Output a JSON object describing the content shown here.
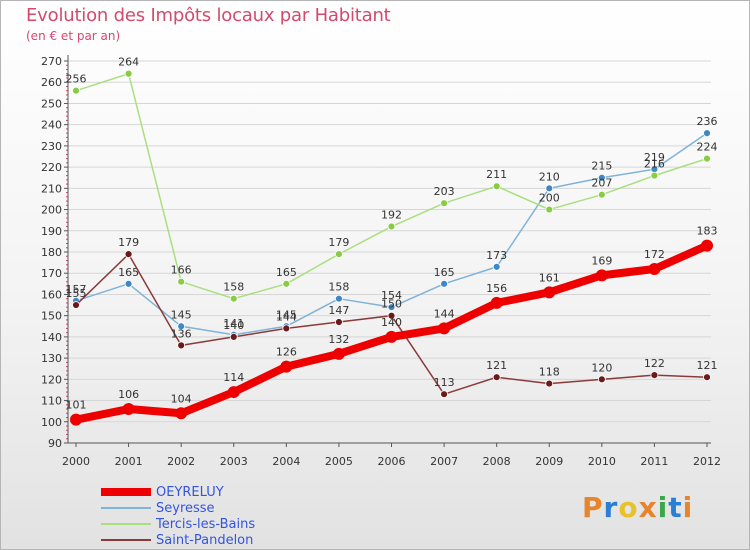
{
  "header": {
    "title": "Evolution des Impôts locaux par Habitant",
    "subtitle": "(en € et par an)"
  },
  "logo": {
    "text": "Proxiti",
    "colors": [
      "#e8842c",
      "#2a7fd4",
      "#e8c22a",
      "#e8842c",
      "#3aa84a",
      "#2a7fd4",
      "#e8842c"
    ]
  },
  "chart_data": {
    "type": "line",
    "x": [
      "2000",
      "2001",
      "2002",
      "2003",
      "2004",
      "2005",
      "2006",
      "2007",
      "2008",
      "2009",
      "2010",
      "2011",
      "2012"
    ],
    "yticks": [
      90,
      100,
      110,
      120,
      130,
      140,
      150,
      160,
      170,
      180,
      190,
      200,
      210,
      220,
      230,
      240,
      250,
      260,
      270
    ],
    "ylim": [
      90,
      270
    ],
    "grid": "horizontal",
    "legend_position": "bottom-left",
    "series": [
      {
        "name": "OEYRELUY",
        "color": "#ee0000",
        "marker_color": "#ee0000",
        "values": [
          101,
          106,
          104,
          114,
          126,
          132,
          140,
          144,
          156,
          161,
          169,
          172,
          183
        ],
        "labels": [
          "101",
          "106",
          "104",
          "114",
          "126",
          "132",
          "140",
          "144",
          "156",
          "161",
          "169",
          "172",
          "183"
        ]
      },
      {
        "name": "Seyresse",
        "color": "#7fb3d9",
        "marker_color": "#3f88c8",
        "values": [
          157,
          165,
          145,
          141,
          145,
          158,
          154,
          165,
          173,
          210,
          215,
          219,
          236
        ],
        "labels": [
          "157",
          "165",
          "145",
          "141",
          "145",
          "158",
          "154",
          "165",
          "173",
          "210",
          "215",
          "219",
          "236"
        ]
      },
      {
        "name": "Tercis-les-Bains",
        "color": "#aadf7f",
        "marker_color": "#88cc44",
        "values": [
          256,
          264,
          166,
          158,
          165,
          179,
          192,
          203,
          211,
          200,
          207,
          216,
          224
        ],
        "labels": [
          "256",
          "264",
          "166",
          "158",
          "165",
          "179",
          "192",
          "203",
          "211",
          "200",
          "207",
          "216",
          "224"
        ]
      },
      {
        "name": "Saint-Pandelon",
        "color": "#8b3a3a",
        "marker_color": "#6b1a1a",
        "values": [
          155,
          179,
          136,
          140,
          144,
          147,
          150,
          113,
          121,
          118,
          120,
          122,
          121
        ],
        "labels": [
          "155",
          "179",
          "136",
          "140",
          "144",
          "147",
          "150",
          "113",
          "121",
          "118",
          "120",
          "122",
          "121"
        ]
      }
    ]
  }
}
